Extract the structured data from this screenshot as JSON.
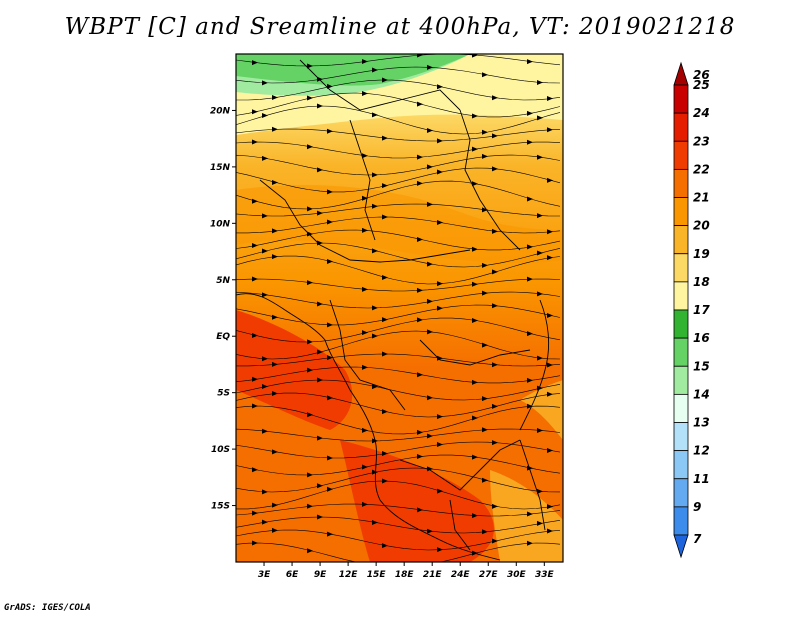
{
  "title": "WBPT [C] and Sreamline at 400hPa, VT: 2019021218",
  "credit": "GrADS: IGES/COLA",
  "map": {
    "lon_range": [
      0,
      35
    ],
    "lat_range": [
      -20,
      25
    ],
    "x_ticks": [
      {
        "value": 3,
        "label": "3E"
      },
      {
        "value": 6,
        "label": "6E"
      },
      {
        "value": 9,
        "label": "9E"
      },
      {
        "value": 12,
        "label": "12E"
      },
      {
        "value": 15,
        "label": "15E"
      },
      {
        "value": 18,
        "label": "18E"
      },
      {
        "value": 21,
        "label": "21E"
      },
      {
        "value": 24,
        "label": "24E"
      },
      {
        "value": 27,
        "label": "27E"
      },
      {
        "value": 30,
        "label": "30E"
      },
      {
        "value": 33,
        "label": "33E"
      }
    ],
    "y_ticks": [
      {
        "value": 20,
        "label": "20N"
      },
      {
        "value": 15,
        "label": "15N"
      },
      {
        "value": 10,
        "label": "10N"
      },
      {
        "value": 5,
        "label": "5N"
      },
      {
        "value": 0,
        "label": "EQ"
      },
      {
        "value": -5,
        "label": "5S"
      },
      {
        "value": -10,
        "label": "10S"
      },
      {
        "value": -15,
        "label": "15S"
      }
    ]
  },
  "colorbar": {
    "levels": [
      {
        "label": "26",
        "color": "#a50000"
      },
      {
        "label": "25",
        "color": "#c80000"
      },
      {
        "label": "24",
        "color": "#e61e00"
      },
      {
        "label": "23",
        "color": "#f03c00"
      },
      {
        "label": "22",
        "color": "#f56e00"
      },
      {
        "label": "21",
        "color": "#fa9600"
      },
      {
        "label": "20",
        "color": "#fab428"
      },
      {
        "label": "19",
        "color": "#fcd864"
      },
      {
        "label": "18",
        "color": "#fff5a0"
      },
      {
        "label": "17",
        "color": "#32b432"
      },
      {
        "label": "16",
        "color": "#64d264"
      },
      {
        "label": "15",
        "color": "#a0eba0"
      },
      {
        "label": "14",
        "color": "#e6fff0"
      },
      {
        "label": "13",
        "color": "#b4e1fa"
      },
      {
        "label": "12",
        "color": "#8cc8f5"
      },
      {
        "label": "11",
        "color": "#64aaf0"
      },
      {
        "label": "9",
        "color": "#3c8ceb"
      },
      {
        "label": "7",
        "color": "#1e64dc"
      }
    ]
  }
}
